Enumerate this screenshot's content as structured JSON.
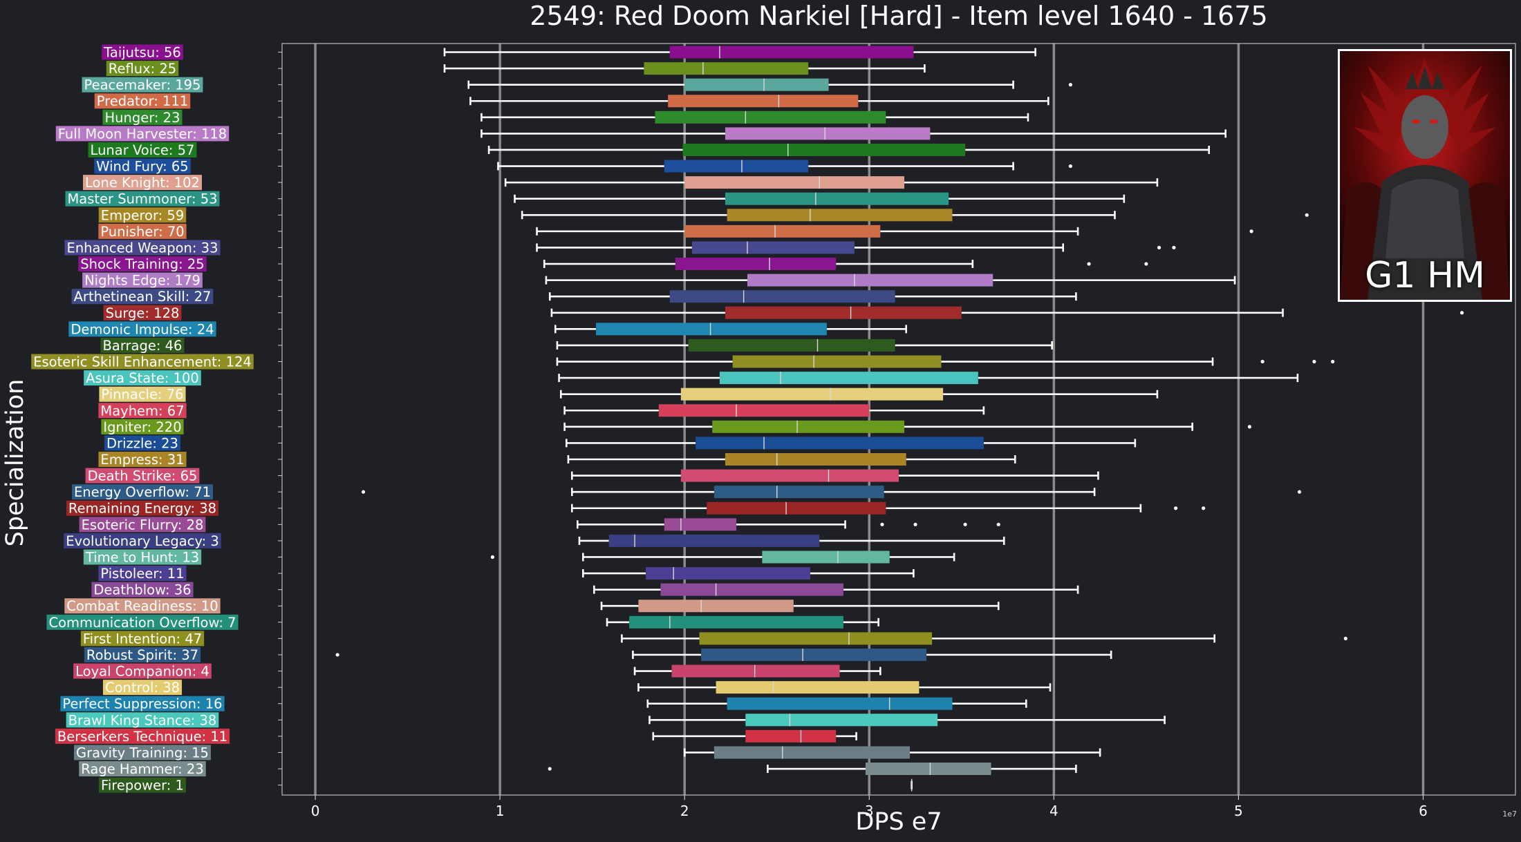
{
  "title": "2549: Red Doom Narkiel [Hard] - Item level 1640 - 1675",
  "image_badge": "G1 HM",
  "chart_data": {
    "type": "boxplot",
    "orientation": "horizontal",
    "xlabel": "DPS e7",
    "ylabel": "Specialization",
    "x_offset_label": "1e7",
    "xlim": [
      -0.18,
      6.5
    ],
    "xticks": [
      0,
      1,
      2,
      3,
      4,
      5,
      6
    ],
    "grid": "vertical",
    "series": [
      {
        "label": "Taijutsu: 56",
        "color": "#8a0f8f",
        "whisker_low": 0.7,
        "q1": 1.92,
        "median": 2.19,
        "q3": 3.24,
        "whisker_high": 3.9,
        "outliers": []
      },
      {
        "label": "Reflux: 25",
        "color": "#6b8e1d",
        "whisker_low": 0.7,
        "q1": 1.78,
        "median": 2.1,
        "q3": 2.67,
        "whisker_high": 3.3,
        "outliers": []
      },
      {
        "label": "Peacemaker: 195",
        "color": "#5aa89d",
        "whisker_low": 0.83,
        "q1": 2.0,
        "median": 2.43,
        "q3": 2.78,
        "whisker_high": 3.78,
        "outliers": [
          4.09
        ]
      },
      {
        "label": "Predator: 111",
        "color": "#d06a47",
        "whisker_low": 0.84,
        "q1": 1.91,
        "median": 2.51,
        "q3": 2.94,
        "whisker_high": 3.97,
        "outliers": []
      },
      {
        "label": "Hunger: 23",
        "color": "#2d8b2b",
        "whisker_low": 0.9,
        "q1": 1.84,
        "median": 2.33,
        "q3": 3.09,
        "whisker_high": 3.86,
        "outliers": []
      },
      {
        "label": "Full Moon Harvester: 118",
        "color": "#b97bc7",
        "whisker_low": 0.9,
        "q1": 2.22,
        "median": 2.76,
        "q3": 3.33,
        "whisker_high": 4.93,
        "outliers": []
      },
      {
        "label": "Lunar Voice: 57",
        "color": "#1e7a1e",
        "whisker_low": 0.94,
        "q1": 1.99,
        "median": 2.56,
        "q3": 3.52,
        "whisker_high": 4.84,
        "outliers": []
      },
      {
        "label": "Wind Fury: 65",
        "color": "#1c4e9b",
        "whisker_low": 0.99,
        "q1": 1.89,
        "median": 2.31,
        "q3": 2.67,
        "whisker_high": 3.78,
        "outliers": [
          4.09
        ]
      },
      {
        "label": "Lone Knight: 102",
        "color": "#e0a08f",
        "whisker_low": 1.03,
        "q1": 2.0,
        "median": 2.73,
        "q3": 3.19,
        "whisker_high": 4.56,
        "outliers": []
      },
      {
        "label": "Master Summoner: 53",
        "color": "#2a9485",
        "whisker_low": 1.08,
        "q1": 2.22,
        "median": 2.71,
        "q3": 3.43,
        "whisker_high": 4.38,
        "outliers": []
      },
      {
        "label": "Emperor: 59",
        "color": "#a88825",
        "whisker_low": 1.12,
        "q1": 2.23,
        "median": 2.68,
        "q3": 3.45,
        "whisker_high": 4.33,
        "outliers": [
          5.37
        ]
      },
      {
        "label": "Punisher: 70",
        "color": "#cf6d49",
        "whisker_low": 1.2,
        "q1": 2.0,
        "median": 2.49,
        "q3": 3.06,
        "whisker_high": 4.13,
        "outliers": [
          5.07
        ]
      },
      {
        "label": "Enhanced Weapon: 33",
        "color": "#48488e",
        "whisker_low": 1.2,
        "q1": 2.04,
        "median": 2.34,
        "q3": 2.92,
        "whisker_high": 4.05,
        "outliers": [
          4.57,
          4.65
        ]
      },
      {
        "label": "Shock Training: 25",
        "color": "#8a168f",
        "whisker_low": 1.24,
        "q1": 1.95,
        "median": 2.46,
        "q3": 2.82,
        "whisker_high": 3.56,
        "outliers": [
          4.19,
          4.5
        ]
      },
      {
        "label": "Nights Edge: 179",
        "color": "#b07bc7",
        "whisker_low": 1.25,
        "q1": 2.34,
        "median": 2.92,
        "q3": 3.67,
        "whisker_high": 4.98,
        "outliers": []
      },
      {
        "label": "Arthetinean Skill: 27",
        "color": "#3e4a86",
        "whisker_low": 1.27,
        "q1": 1.92,
        "median": 2.32,
        "q3": 3.14,
        "whisker_high": 4.12,
        "outliers": []
      },
      {
        "label": "Surge: 128",
        "color": "#a22c2c",
        "whisker_low": 1.28,
        "q1": 2.22,
        "median": 2.9,
        "q3": 3.5,
        "whisker_high": 5.24,
        "outliers": [
          6.21
        ]
      },
      {
        "label": "Demonic Impulse: 24",
        "color": "#1e86b0",
        "whisker_low": 1.3,
        "q1": 1.52,
        "median": 2.14,
        "q3": 2.77,
        "whisker_high": 3.2,
        "outliers": []
      },
      {
        "label": "Barrage: 46",
        "color": "#2f5a1d",
        "whisker_low": 1.31,
        "q1": 2.02,
        "median": 2.72,
        "q3": 3.14,
        "whisker_high": 3.99,
        "outliers": []
      },
      {
        "label": "Esoteric Skill Enhancement: 124",
        "color": "#8f8f24",
        "whisker_low": 1.31,
        "q1": 2.26,
        "median": 2.7,
        "q3": 3.39,
        "whisker_high": 4.86,
        "outliers": [
          5.13,
          5.41,
          5.51
        ]
      },
      {
        "label": "Asura State: 100",
        "color": "#4ac4bc",
        "whisker_low": 1.32,
        "q1": 2.19,
        "median": 2.52,
        "q3": 3.59,
        "whisker_high": 5.32,
        "outliers": []
      },
      {
        "label": "Pinnacle: 76",
        "color": "#e5cf7d",
        "whisker_low": 1.33,
        "q1": 1.98,
        "median": 2.79,
        "q3": 3.4,
        "whisker_high": 4.56,
        "outliers": []
      },
      {
        "label": "Mayhem: 67",
        "color": "#d6405a",
        "whisker_low": 1.35,
        "q1": 1.86,
        "median": 2.28,
        "q3": 3.0,
        "whisker_high": 3.62,
        "outliers": []
      },
      {
        "label": "Igniter: 220",
        "color": "#6a9a1d",
        "whisker_low": 1.35,
        "q1": 2.15,
        "median": 2.61,
        "q3": 3.19,
        "whisker_high": 4.75,
        "outliers": [
          5.06
        ]
      },
      {
        "label": "Drizzle: 23",
        "color": "#1b4d97",
        "whisker_low": 1.36,
        "q1": 2.06,
        "median": 2.43,
        "q3": 3.62,
        "whisker_high": 4.44,
        "outliers": []
      },
      {
        "label": "Empress: 31",
        "color": "#a98526",
        "whisker_low": 1.37,
        "q1": 2.22,
        "median": 2.5,
        "q3": 3.2,
        "whisker_high": 3.79,
        "outliers": []
      },
      {
        "label": "Death Strike: 65",
        "color": "#d14c70",
        "whisker_low": 1.39,
        "q1": 1.98,
        "median": 2.78,
        "q3": 3.16,
        "whisker_high": 4.24,
        "outliers": []
      },
      {
        "label": "Energy Overflow: 71",
        "color": "#2f5b88",
        "whisker_low": 1.39,
        "q1": 2.16,
        "median": 2.5,
        "q3": 3.08,
        "whisker_high": 4.22,
        "outliers": [
          0.26,
          5.33
        ]
      },
      {
        "label": "Remaining Energy: 38",
        "color": "#9a2525",
        "whisker_low": 1.39,
        "q1": 2.12,
        "median": 2.55,
        "q3": 3.09,
        "whisker_high": 4.47,
        "outliers": [
          4.66,
          4.81
        ]
      },
      {
        "label": "Esoteric Flurry: 28",
        "color": "#9a4b95",
        "whisker_low": 1.42,
        "q1": 1.89,
        "median": 1.98,
        "q3": 2.28,
        "whisker_high": 2.87,
        "outliers": [
          3.07,
          3.25,
          3.52,
          3.7
        ]
      },
      {
        "label": "Evolutionary Legacy: 3",
        "color": "#3a3e82",
        "whisker_low": 1.43,
        "q1": 1.59,
        "median": 1.73,
        "q3": 2.73,
        "whisker_high": 3.73,
        "outliers": []
      },
      {
        "label": "Time to Hunt: 13",
        "color": "#62b89f",
        "whisker_low": 1.45,
        "q1": 2.42,
        "median": 2.83,
        "q3": 3.11,
        "whisker_high": 3.46,
        "outliers": [
          0.96
        ]
      },
      {
        "label": "Pistoleer: 11",
        "color": "#4b3f93",
        "whisker_low": 1.45,
        "q1": 1.79,
        "median": 1.94,
        "q3": 2.68,
        "whisker_high": 3.24,
        "outliers": []
      },
      {
        "label": "Deathblow: 36",
        "color": "#8a4a98",
        "whisker_low": 1.51,
        "q1": 1.87,
        "median": 2.17,
        "q3": 2.86,
        "whisker_high": 4.13,
        "outliers": []
      },
      {
        "label": "Combat Readiness: 10",
        "color": "#d29a86",
        "whisker_low": 1.55,
        "q1": 1.75,
        "median": 2.09,
        "q3": 2.59,
        "whisker_high": 3.7,
        "outliers": []
      },
      {
        "label": "Communication Overflow: 7",
        "color": "#23907c",
        "whisker_low": 1.58,
        "q1": 1.7,
        "median": 1.92,
        "q3": 2.86,
        "whisker_high": 3.05,
        "outliers": []
      },
      {
        "label": "First Intention: 47",
        "color": "#8e8f1f",
        "whisker_low": 1.66,
        "q1": 2.08,
        "median": 2.89,
        "q3": 3.34,
        "whisker_high": 4.87,
        "outliers": [
          5.58
        ]
      },
      {
        "label": "Robust Spirit: 37",
        "color": "#2e5886",
        "whisker_low": 1.72,
        "q1": 2.09,
        "median": 2.64,
        "q3": 3.31,
        "whisker_high": 4.31,
        "outliers": [
          0.12
        ]
      },
      {
        "label": "Loyal Companion: 4",
        "color": "#c9436b",
        "whisker_low": 1.73,
        "q1": 1.93,
        "median": 2.38,
        "q3": 2.84,
        "whisker_high": 3.06,
        "outliers": []
      },
      {
        "label": "Control: 38",
        "color": "#e5cb70",
        "whisker_low": 1.75,
        "q1": 2.17,
        "median": 2.48,
        "q3": 3.27,
        "whisker_high": 3.98,
        "outliers": []
      },
      {
        "label": "Perfect Suppression: 16",
        "color": "#1d82ad",
        "whisker_low": 1.8,
        "q1": 2.23,
        "median": 3.11,
        "q3": 3.45,
        "whisker_high": 3.85,
        "outliers": []
      },
      {
        "label": "Brawl King Stance: 38",
        "color": "#4ac9bc",
        "whisker_low": 1.81,
        "q1": 2.33,
        "median": 2.57,
        "q3": 3.37,
        "whisker_high": 4.6,
        "outliers": []
      },
      {
        "label": "Berserkers Technique: 11",
        "color": "#d13345",
        "whisker_low": 1.83,
        "q1": 2.33,
        "median": 2.63,
        "q3": 2.82,
        "whisker_high": 2.93,
        "outliers": []
      },
      {
        "label": "Gravity Training: 15",
        "color": "#6b7e86",
        "whisker_low": 2.0,
        "q1": 2.16,
        "median": 2.53,
        "q3": 3.22,
        "whisker_high": 4.25,
        "outliers": []
      },
      {
        "label": "Rage Hammer: 23",
        "color": "#7a8c8e",
        "whisker_low": 2.45,
        "q1": 2.98,
        "median": 3.33,
        "q3": 3.66,
        "whisker_high": 4.12,
        "outliers": [
          1.27
        ]
      },
      {
        "label": "Firepower: 1",
        "color": "#2e5a1e",
        "whisker_low": 3.23,
        "q1": 3.23,
        "median": 3.23,
        "q3": 3.23,
        "whisker_high": 3.23,
        "outliers": []
      }
    ]
  }
}
